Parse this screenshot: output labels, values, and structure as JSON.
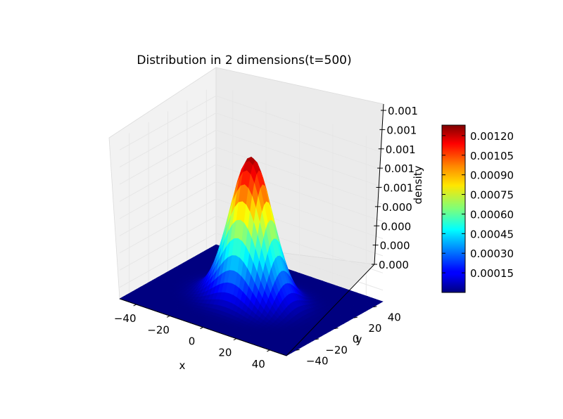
{
  "chart_data": {
    "type": "surface",
    "title": "Distribution in 2 dimensions(t=500)",
    "xlabel": "x",
    "ylabel": "y",
    "zlabel": "density",
    "x_ticks": [
      "−40",
      "−20",
      "0",
      "20",
      "40"
    ],
    "y_ticks": [
      "−40",
      "−20",
      "0",
      "20",
      "40"
    ],
    "z_ticks": [
      "0.000",
      "0.000",
      "0.000",
      "0.000",
      "0.001",
      "0.001",
      "0.001",
      "0.001",
      "0.001"
    ],
    "xlim": [
      -50,
      50
    ],
    "ylim": [
      -50,
      50
    ],
    "zlim": [
      0,
      0.0014
    ],
    "peak_density": 0.00125,
    "sigma": 11.3,
    "center": [
      0,
      0
    ],
    "colormap": "jet",
    "grid": true,
    "colorbar": {
      "min": 0,
      "max": 0.00128,
      "ticks": [
        "0.00015",
        "0.00030",
        "0.00045",
        "0.00060",
        "0.00075",
        "0.00090",
        "0.00105",
        "0.00120"
      ]
    },
    "pane_color": "#f2f2f2",
    "grid_color": "#e6e6e6"
  }
}
